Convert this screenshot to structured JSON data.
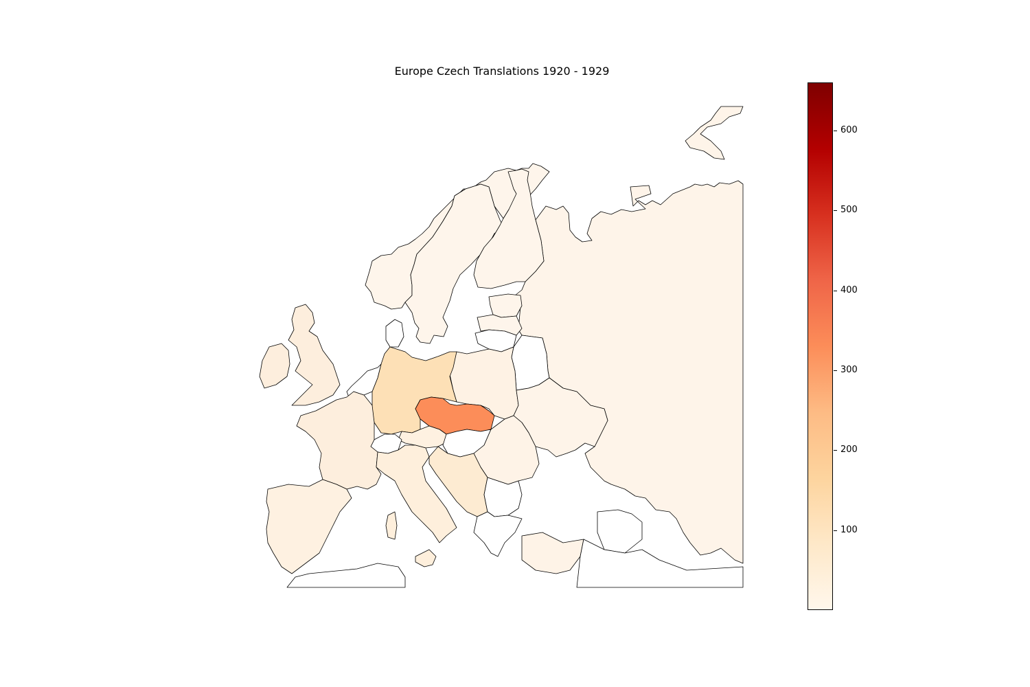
{
  "title": "Europe Czech Translations 1920 - 1929",
  "colormap": {
    "name": "OrRd",
    "min": 0,
    "max": 660,
    "stops": [
      "#fff7ec",
      "#fee8c8",
      "#fdd49e",
      "#fdbb84",
      "#fc8d59",
      "#ef6548",
      "#d7301f",
      "#b30000",
      "#7f0000"
    ],
    "ticks": [
      100,
      200,
      300,
      400,
      500,
      600
    ]
  },
  "regions": [
    {
      "name": "Czechoslovakia",
      "value": 300,
      "color": "#fc8d59"
    },
    {
      "name": "Germany",
      "value": 150,
      "color": "#fde0b6"
    },
    {
      "name": "Yugoslavia",
      "value": 100,
      "color": "#fdebd2"
    },
    {
      "name": "France",
      "value": 80,
      "color": "#fdeedd"
    },
    {
      "name": "Italy",
      "value": 60,
      "color": "#feefdc"
    },
    {
      "name": "Spain",
      "value": 40,
      "color": "#fef1e1"
    },
    {
      "name": "Austria",
      "value": 50,
      "color": "#fef1e1"
    },
    {
      "name": "Poland",
      "value": 40,
      "color": "#fef2e4"
    },
    {
      "name": "United Kingdom",
      "value": 60,
      "color": "#fdeedd"
    },
    {
      "name": "Ireland",
      "value": 50,
      "color": "#fdeedd"
    },
    {
      "name": "Romania",
      "value": 20,
      "color": "#fef3e7"
    },
    {
      "name": "Ukraine",
      "value": 10,
      "color": "#fef4e9"
    },
    {
      "name": "Russia",
      "value": 10,
      "color": "#fef4e9"
    },
    {
      "name": "Sweden",
      "value": 5,
      "color": "#fef5eb"
    },
    {
      "name": "Norway",
      "value": 5,
      "color": "#fef5eb"
    },
    {
      "name": "Finland",
      "value": 5,
      "color": "#fef5eb"
    },
    {
      "name": "Estonia",
      "value": 5,
      "color": "#fef5eb"
    },
    {
      "name": "Latvia",
      "value": 5,
      "color": "#fef5eb"
    },
    {
      "name": "Turkey",
      "value": 20,
      "color": "#fef3e7"
    }
  ]
}
